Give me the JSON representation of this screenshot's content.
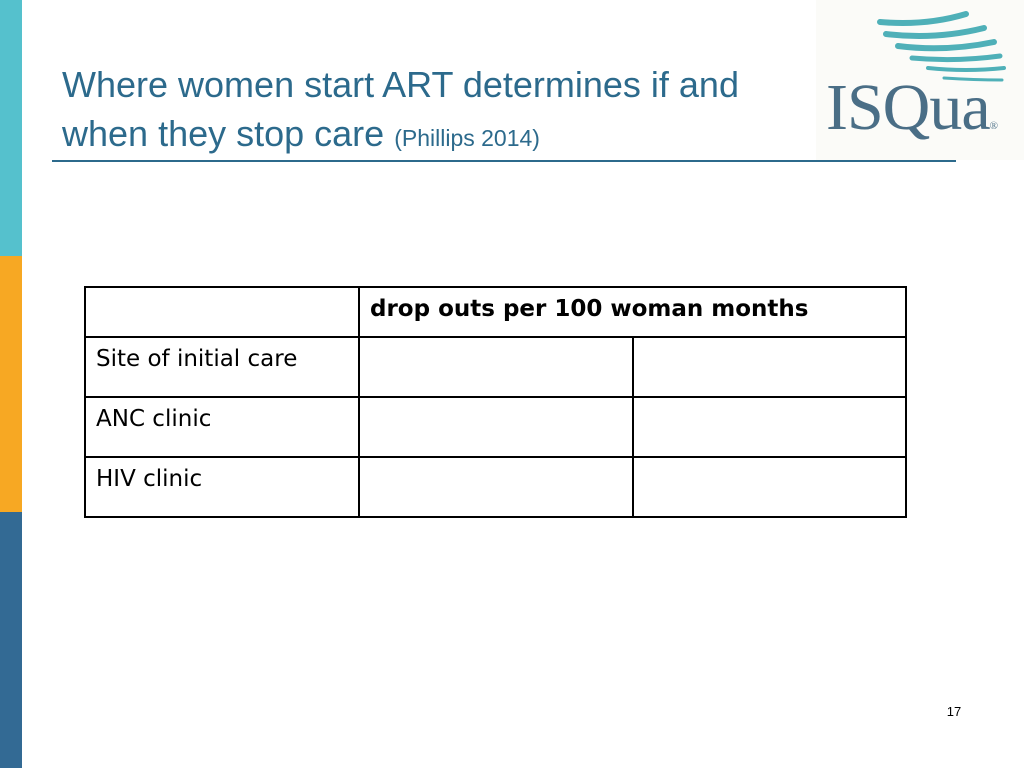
{
  "slide": {
    "title_main": "Where women start ART determines if and when they stop care",
    "title_citation": "(Phillips 2014)",
    "page_number": "17"
  },
  "logo": {
    "text": "ISQua",
    "registered_mark": "®"
  },
  "table": {
    "header_label": "drop outs per 100 woman months",
    "rows": [
      {
        "label": "Site of initial care",
        "values": [
          "",
          ""
        ]
      },
      {
        "label": "ANC clinic",
        "values": [
          "",
          ""
        ]
      },
      {
        "label": "HIV clinic",
        "values": [
          "",
          ""
        ]
      }
    ]
  },
  "colors": {
    "title": "#2c6a8c",
    "rule": "#2c6a8c",
    "side_teal": "#55c1cd",
    "side_orange": "#f7a823",
    "side_blue": "#336a94",
    "logo_text": "#4a6e86",
    "logo_swoosh": "#4fb0b8"
  }
}
